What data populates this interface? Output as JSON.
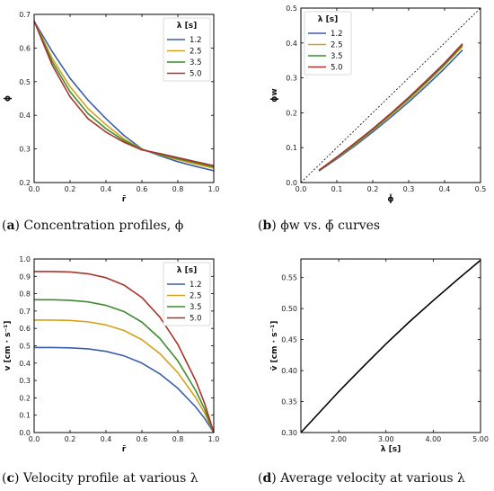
{
  "captions": [
    {
      "id": "a",
      "text": "Concentration profiles, ϕ"
    },
    {
      "id": "b",
      "text": "ϕw vs. ϕ̄ curves"
    },
    {
      "id": "c",
      "text": "Velocity profile at various λ"
    },
    {
      "id": "d",
      "text": "Average velocity at various λ"
    }
  ],
  "colors": {
    "1.2": "#3a5fa8",
    "2.5": "#d4a21a",
    "3.5": "#3d8c2f",
    "5.0": "#a8352c",
    "axis": "#000000"
  },
  "chart_data": [
    {
      "id": "a",
      "type": "line",
      "xlabel": "r̄",
      "ylabel": "ϕ",
      "xlim": [
        0,
        1
      ],
      "ylim": [
        0.2,
        0.7
      ],
      "xticks": [
        "0.0",
        "0.2",
        "0.4",
        "0.6",
        "0.8",
        "1.0"
      ],
      "yticks": [
        "0.2",
        "0.3",
        "0.4",
        "0.5",
        "0.6",
        "0.7"
      ],
      "legend": {
        "title": "λ [s]",
        "placement": "top-right"
      },
      "series": [
        {
          "name": "1.2",
          "x": [
            0,
            0.1,
            0.2,
            0.3,
            0.4,
            0.5,
            0.6,
            0.7,
            0.8,
            0.9,
            1.0
          ],
          "y": [
            0.68,
            0.59,
            0.51,
            0.445,
            0.39,
            0.34,
            0.3,
            0.28,
            0.262,
            0.248,
            0.235
          ]
        },
        {
          "name": "2.5",
          "x": [
            0,
            0.1,
            0.2,
            0.3,
            0.4,
            0.5,
            0.6,
            0.7,
            0.8,
            0.9,
            1.0
          ],
          "y": [
            0.68,
            0.57,
            0.485,
            0.42,
            0.372,
            0.33,
            0.299,
            0.283,
            0.268,
            0.255,
            0.243
          ]
        },
        {
          "name": "3.5",
          "x": [
            0,
            0.1,
            0.2,
            0.3,
            0.4,
            0.5,
            0.6,
            0.7,
            0.8,
            0.9,
            1.0
          ],
          "y": [
            0.68,
            0.56,
            0.47,
            0.405,
            0.36,
            0.325,
            0.298,
            0.284,
            0.271,
            0.259,
            0.247
          ]
        },
        {
          "name": "5.0",
          "x": [
            0,
            0.1,
            0.2,
            0.3,
            0.4,
            0.5,
            0.6,
            0.7,
            0.8,
            0.9,
            1.0
          ],
          "y": [
            0.68,
            0.55,
            0.455,
            0.39,
            0.35,
            0.32,
            0.297,
            0.286,
            0.274,
            0.262,
            0.25
          ]
        }
      ]
    },
    {
      "id": "b",
      "type": "line",
      "xlabel": "ϕ̄",
      "ylabel": "ϕw",
      "xlim": [
        0,
        0.5
      ],
      "ylim": [
        0,
        0.5
      ],
      "xticks": [
        "0.0",
        "0.1",
        "0.2",
        "0.3",
        "0.4",
        "0.5"
      ],
      "yticks": [
        "0.0",
        "0.1",
        "0.2",
        "0.3",
        "0.4",
        "0.5"
      ],
      "legend": {
        "title": "λ [s]",
        "placement": "top-left"
      },
      "reference_line": {
        "x": [
          0,
          0.5
        ],
        "y": [
          0,
          0.5
        ],
        "style": "dashed"
      },
      "series": [
        {
          "name": "1.2",
          "x": [
            0.05,
            0.1,
            0.15,
            0.2,
            0.25,
            0.3,
            0.35,
            0.4,
            0.45
          ],
          "y": [
            0.033,
            0.068,
            0.105,
            0.145,
            0.187,
            0.231,
            0.278,
            0.327,
            0.38
          ]
        },
        {
          "name": "2.5",
          "x": [
            0.05,
            0.1,
            0.15,
            0.2,
            0.25,
            0.3,
            0.35,
            0.4,
            0.45
          ],
          "y": [
            0.034,
            0.071,
            0.109,
            0.15,
            0.193,
            0.238,
            0.286,
            0.336,
            0.39
          ]
        },
        {
          "name": "3.5",
          "x": [
            0.05,
            0.1,
            0.15,
            0.2,
            0.25,
            0.3,
            0.35,
            0.4,
            0.45
          ],
          "y": [
            0.034,
            0.072,
            0.111,
            0.152,
            0.196,
            0.241,
            0.289,
            0.339,
            0.394
          ]
        },
        {
          "name": "5.0",
          "x": [
            0.05,
            0.1,
            0.15,
            0.2,
            0.25,
            0.3,
            0.35,
            0.4,
            0.45
          ],
          "y": [
            0.035,
            0.073,
            0.113,
            0.154,
            0.198,
            0.244,
            0.293,
            0.343,
            0.398
          ]
        }
      ]
    },
    {
      "id": "c",
      "type": "line",
      "xlabel": "r̄",
      "ylabel": "v [cm · s⁻¹]",
      "xlim": [
        0,
        1
      ],
      "ylim": [
        0,
        1.0
      ],
      "xticks": [
        "0.0",
        "0.2",
        "0.4",
        "0.6",
        "0.8",
        "1.0"
      ],
      "yticks": [
        "0.0",
        "0.1",
        "0.2",
        "0.3",
        "0.4",
        "0.5",
        "0.6",
        "0.7",
        "0.8",
        "0.9",
        "1.0"
      ],
      "legend": {
        "title": "λ [s]",
        "placement": "top-right"
      },
      "series": [
        {
          "name": "1.2",
          "x": [
            0,
            0.1,
            0.2,
            0.3,
            0.4,
            0.5,
            0.6,
            0.7,
            0.8,
            0.9,
            0.95,
            1.0
          ],
          "y": [
            0.49,
            0.49,
            0.488,
            0.482,
            0.468,
            0.442,
            0.4,
            0.338,
            0.255,
            0.147,
            0.08,
            0.0
          ]
        },
        {
          "name": "2.5",
          "x": [
            0,
            0.1,
            0.2,
            0.3,
            0.4,
            0.5,
            0.6,
            0.7,
            0.8,
            0.9,
            0.95,
            1.0
          ],
          "y": [
            0.648,
            0.648,
            0.646,
            0.638,
            0.62,
            0.588,
            0.535,
            0.455,
            0.345,
            0.2,
            0.11,
            0.0
          ]
        },
        {
          "name": "3.5",
          "x": [
            0,
            0.1,
            0.2,
            0.3,
            0.4,
            0.5,
            0.6,
            0.7,
            0.8,
            0.9,
            0.95,
            1.0
          ],
          "y": [
            0.765,
            0.765,
            0.762,
            0.753,
            0.733,
            0.697,
            0.636,
            0.542,
            0.413,
            0.241,
            0.133,
            0.0
          ]
        },
        {
          "name": "5.0",
          "x": [
            0,
            0.1,
            0.2,
            0.3,
            0.4,
            0.5,
            0.6,
            0.7,
            0.8,
            0.9,
            0.95,
            1.0
          ],
          "y": [
            0.928,
            0.928,
            0.925,
            0.915,
            0.892,
            0.85,
            0.778,
            0.665,
            0.508,
            0.298,
            0.165,
            0.0
          ]
        }
      ]
    },
    {
      "id": "d",
      "type": "line",
      "xlabel": "λ [s]",
      "ylabel": "v̄ [cm · s⁻¹]",
      "xlim": [
        1.2,
        5.0
      ],
      "ylim": [
        0.3,
        0.58
      ],
      "xticks": [
        "2.00",
        "3.00",
        "4.00",
        "5.00"
      ],
      "xtick_values": [
        2,
        3,
        4,
        5
      ],
      "yticks": [
        "0.30",
        "0.35",
        "0.40",
        "0.45",
        "0.50",
        "0.55"
      ],
      "ytick_values": [
        0.3,
        0.35,
        0.4,
        0.45,
        0.5,
        0.55
      ],
      "series": [
        {
          "name": "",
          "x": [
            1.2,
            2.0,
            2.5,
            3.0,
            3.5,
            4.0,
            4.5,
            5.0
          ],
          "y": [
            0.3,
            0.366,
            0.405,
            0.443,
            0.479,
            0.513,
            0.546,
            0.578
          ]
        }
      ]
    }
  ]
}
